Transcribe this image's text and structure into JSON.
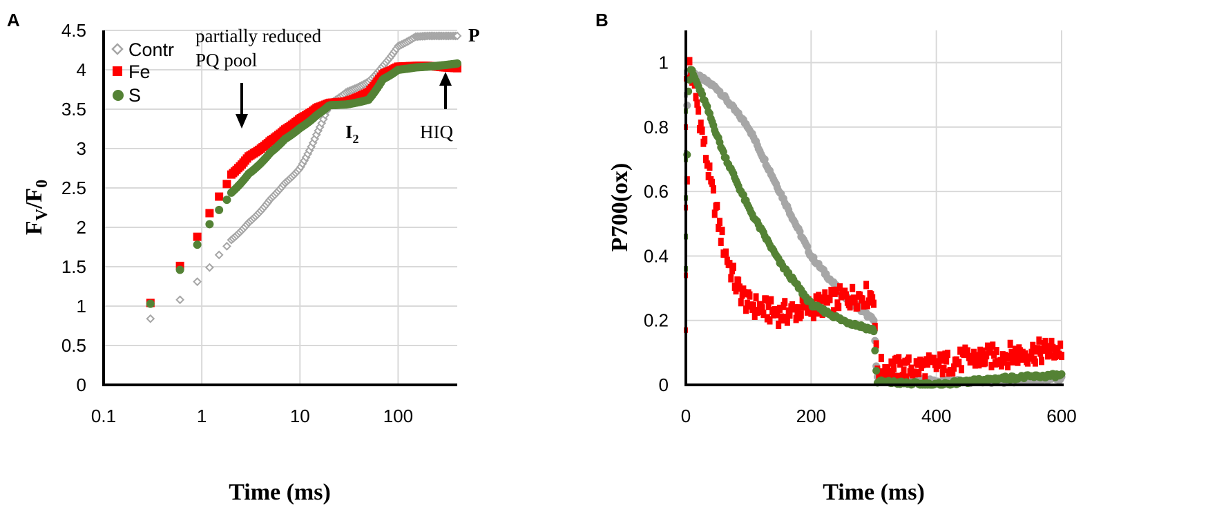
{
  "figure": {
    "panel_a_label": "A",
    "panel_b_label": "B"
  },
  "chart_data": [
    {
      "id": "A",
      "type": "scatter",
      "xscale": "log",
      "xlim": [
        0.1,
        400
      ],
      "ylim": [
        0,
        4.5
      ],
      "xticks": [
        "0.1",
        "1",
        "10",
        "100"
      ],
      "yticks": [
        "0",
        "0.5",
        "1",
        "1.5",
        "2",
        "2.5",
        "3",
        "3.5",
        "4",
        "4.5"
      ],
      "xlabel": "Time (ms)",
      "ylabel_main": "F",
      "ylabel_sub1": "V",
      "ylabel_mid": "/F",
      "ylabel_sub2": "0",
      "grid": true,
      "legend": [
        "Contr",
        "Fe",
        "S"
      ],
      "legend_position": "top-left",
      "annotations": {
        "pq_line1": "partially reduced",
        "pq_line2": "PQ pool",
        "i2_main": "I",
        "i2_sub": "2",
        "p_label": "P",
        "hiq": "HIQ"
      },
      "series": [
        {
          "name": "Contr",
          "color": "#a6a6a6",
          "marker": "diamond-open",
          "points": [
            [
              0.3,
              0.84
            ],
            [
              0.6,
              1.08
            ],
            [
              0.9,
              1.31
            ],
            [
              1.2,
              1.49
            ],
            [
              1.5,
              1.65
            ],
            [
              1.8,
              1.76
            ],
            [
              2,
              1.84
            ],
            [
              3,
              2.06
            ],
            [
              5,
              2.36
            ],
            [
              7,
              2.56
            ],
            [
              10,
              2.75
            ],
            [
              15,
              3.2
            ],
            [
              20,
              3.57
            ],
            [
              30,
              3.72
            ],
            [
              50,
              3.85
            ],
            [
              70,
              4.05
            ],
            [
              100,
              4.3
            ],
            [
              150,
              4.42
            ],
            [
              200,
              4.43
            ],
            [
              300,
              4.43
            ],
            [
              400,
              4.43
            ]
          ]
        },
        {
          "name": "Fe",
          "color": "#ff0000",
          "marker": "square",
          "points": [
            [
              0.3,
              1.04
            ],
            [
              0.6,
              1.51
            ],
            [
              0.9,
              1.88
            ],
            [
              1.2,
              2.18
            ],
            [
              1.5,
              2.39
            ],
            [
              1.8,
              2.55
            ],
            [
              2,
              2.67
            ],
            [
              3,
              2.9
            ],
            [
              5,
              3.1
            ],
            [
              7,
              3.24
            ],
            [
              10,
              3.38
            ],
            [
              15,
              3.52
            ],
            [
              20,
              3.58
            ],
            [
              30,
              3.6
            ],
            [
              50,
              3.72
            ],
            [
              70,
              3.95
            ],
            [
              100,
              4.04
            ],
            [
              150,
              4.05
            ],
            [
              200,
              4.05
            ],
            [
              300,
              4.03
            ],
            [
              400,
              4.02
            ]
          ]
        },
        {
          "name": "S",
          "color": "#548235",
          "marker": "circle",
          "points": [
            [
              0.3,
              1.03
            ],
            [
              0.6,
              1.46
            ],
            [
              0.9,
              1.78
            ],
            [
              1.2,
              2.04
            ],
            [
              1.5,
              2.22
            ],
            [
              1.8,
              2.35
            ],
            [
              2,
              2.44
            ],
            [
              3,
              2.68
            ],
            [
              5,
              2.95
            ],
            [
              7,
              3.12
            ],
            [
              10,
              3.26
            ],
            [
              15,
              3.43
            ],
            [
              20,
              3.55
            ],
            [
              30,
              3.56
            ],
            [
              50,
              3.62
            ],
            [
              70,
              3.88
            ],
            [
              100,
              4.0
            ],
            [
              150,
              4.03
            ],
            [
              200,
              4.04
            ],
            [
              300,
              4.06
            ],
            [
              400,
              4.08
            ]
          ]
        }
      ]
    },
    {
      "id": "B",
      "type": "scatter",
      "xscale": "linear",
      "xlim": [
        0,
        600
      ],
      "ylim": [
        0,
        1.1
      ],
      "xticks": [
        "0",
        "200",
        "400",
        "600"
      ],
      "xtick_values": [
        0,
        200,
        400,
        600
      ],
      "yticks": [
        "0",
        "0.2",
        "0.4",
        "0.6",
        "0.8",
        "1"
      ],
      "ytick_values": [
        0,
        0.2,
        0.4,
        0.6,
        0.8,
        1
      ],
      "xlabel": "Time (ms)",
      "ylabel": "P700(ox)",
      "grid": true,
      "series": [
        {
          "name": "Contr",
          "color": "#a6a6a6",
          "points": [
            [
              0,
              0.72
            ],
            [
              3,
              0.95
            ],
            [
              10,
              0.97
            ],
            [
              50,
              0.92
            ],
            [
              100,
              0.8
            ],
            [
              150,
              0.6
            ],
            [
              200,
              0.4
            ],
            [
              250,
              0.28
            ],
            [
              300,
              0.2
            ],
            [
              305,
              0.03
            ],
            [
              400,
              0.01
            ],
            [
              500,
              0.01
            ],
            [
              600,
              0.02
            ]
          ]
        },
        {
          "name": "Fe",
          "color": "#ff0000",
          "points": [
            [
              0,
              0.17
            ],
            [
              3,
              0.9
            ],
            [
              6,
              1.0
            ],
            [
              20,
              0.85
            ],
            [
              40,
              0.62
            ],
            [
              60,
              0.43
            ],
            [
              80,
              0.31
            ],
            [
              100,
              0.25
            ],
            [
              150,
              0.22
            ],
            [
              200,
              0.24
            ],
            [
              250,
              0.27
            ],
            [
              300,
              0.28
            ],
            [
              305,
              0.05
            ],
            [
              350,
              0.05
            ],
            [
              400,
              0.06
            ],
            [
              450,
              0.08
            ],
            [
              500,
              0.09
            ],
            [
              550,
              0.1
            ],
            [
              600,
              0.11
            ]
          ]
        },
        {
          "name": "S",
          "color": "#548235",
          "points": [
            [
              0,
              0.36
            ],
            [
              3,
              0.9
            ],
            [
              8,
              0.98
            ],
            [
              30,
              0.88
            ],
            [
              60,
              0.72
            ],
            [
              100,
              0.55
            ],
            [
              150,
              0.38
            ],
            [
              200,
              0.25
            ],
            [
              250,
              0.2
            ],
            [
              300,
              0.17
            ],
            [
              305,
              0.01
            ],
            [
              400,
              0.0
            ],
            [
              500,
              0.02
            ],
            [
              600,
              0.03
            ]
          ]
        }
      ]
    }
  ]
}
